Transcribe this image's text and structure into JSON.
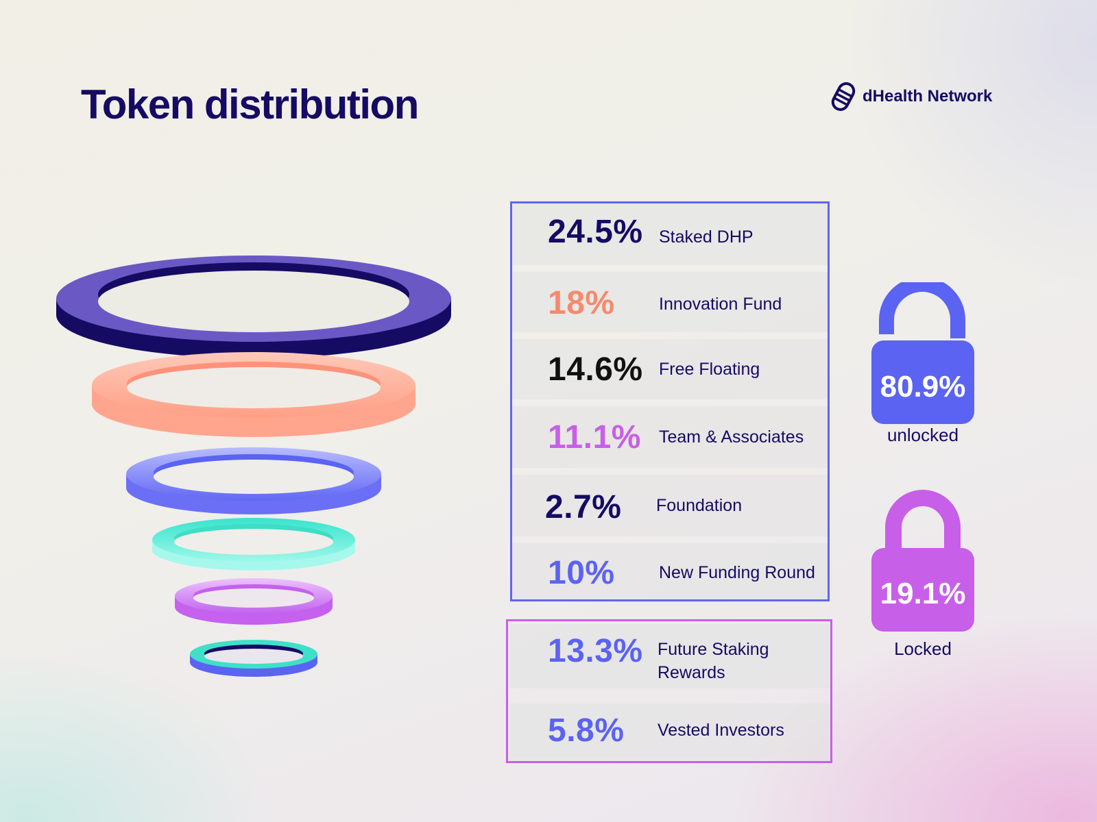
{
  "header": {
    "title": "Token distribution",
    "brand": "dHealth Network",
    "brand_icon": "dhealth-logo-icon"
  },
  "colors": {
    "navy": "#150b63",
    "coral": "#f58a6e",
    "purple": "#c85fe8",
    "blue": "#5b63f2",
    "teal": "#25dcc4",
    "unlocked_border": "#6065f2",
    "locked_border": "#c85fe8"
  },
  "chart_data": {
    "type": "table",
    "groups": [
      {
        "status": "unlocked",
        "total": "80.9%",
        "caption": "unlocked",
        "icon": "unlocked-padlock-icon",
        "rows": [
          {
            "value": "24.5%",
            "label": "Staked DHP",
            "color": "#150b63"
          },
          {
            "value": "18%",
            "label": "Innovation Fund",
            "color": "#f58a6e"
          },
          {
            "value": "14.6%",
            "label": "Free Floating",
            "color": "#111111"
          },
          {
            "value": "11.1%",
            "label": "Team & Associates",
            "color": "#c85fe8"
          },
          {
            "value": "2.7%",
            "label": "Foundation",
            "color": "#150b63"
          },
          {
            "value": "10%",
            "label": "New Funding Round",
            "color": "#5b63f2"
          }
        ]
      },
      {
        "status": "locked",
        "total": "19.1%",
        "caption": "Locked",
        "icon": "locked-padlock-icon",
        "rows": [
          {
            "value": "13.3%",
            "label": "Future Staking Rewards",
            "color": "#5b63f2"
          },
          {
            "value": "5.8%",
            "label": "Vested Investors",
            "color": "#5b63f2"
          }
        ]
      }
    ]
  }
}
